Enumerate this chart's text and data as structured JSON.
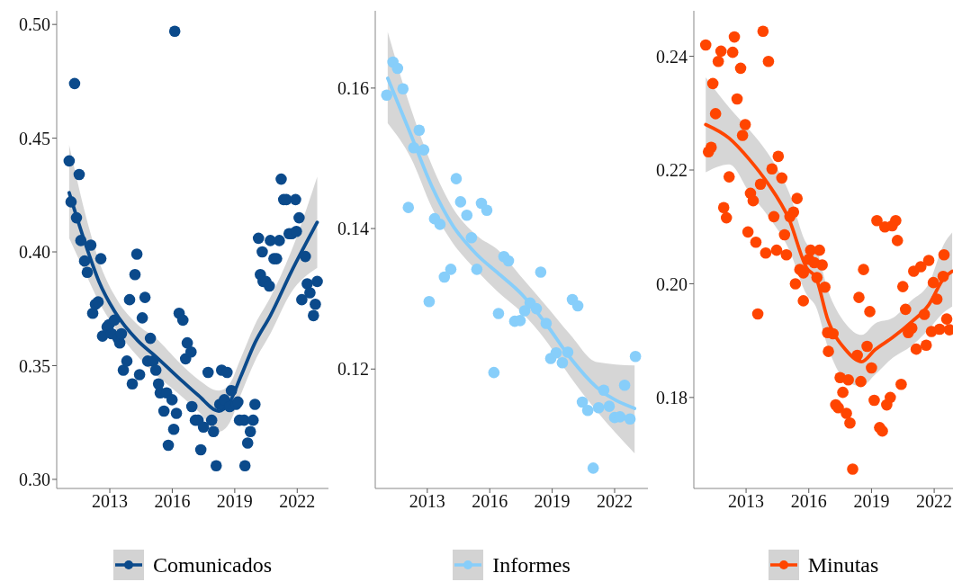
{
  "chart_data": [
    {
      "type": "scatter",
      "xlim": [
        2010.45,
        2023.5
      ],
      "xticks": [
        2013,
        2016,
        2019,
        2022
      ],
      "ylim": [
        0.296,
        0.506
      ],
      "yticks": [
        {
          "value": 0.3,
          "label": "0.30"
        },
        {
          "value": 0.35,
          "label": "0.35"
        },
        {
          "value": 0.4,
          "label": "0.40"
        },
        {
          "value": 0.45,
          "label": "0.45"
        },
        {
          "value": 0.5,
          "label": "0.50"
        }
      ],
      "legend": "bottom",
      "series": [
        {
          "name": "Comunicados",
          "marker": "circle",
          "color": "#0b4a8b",
          "x": [
            2011.05,
            2011.14,
            2011.31,
            2011.4,
            2011.53,
            2011.61,
            2011.79,
            2011.92,
            2012.09,
            2012.18,
            2012.31,
            2012.44,
            2012.57,
            2012.65,
            2012.87,
            2012.96,
            2013.09,
            2013.22,
            2013.39,
            2013.48,
            2013.56,
            2013.65,
            2013.82,
            2013.95,
            2014.08,
            2014.21,
            2014.3,
            2014.43,
            2014.56,
            2014.69,
            2014.82,
            2014.95,
            2015.08,
            2015.21,
            2015.34,
            2015.42,
            2015.6,
            2015.73,
            2015.81,
            2015.99,
            2016.07,
            2016.12,
            2016.2,
            2016.33,
            2016.51,
            2016.64,
            2016.72,
            2016.9,
            2016.94,
            2017.11,
            2017.24,
            2017.37,
            2017.5,
            2017.72,
            2017.89,
            2017.98,
            2018.11,
            2018.28,
            2018.37,
            2018.5,
            2018.63,
            2018.76,
            2018.84,
            2019.06,
            2019.15,
            2019.23,
            2019.45,
            2019.49,
            2019.62,
            2019.75,
            2019.88,
            2019.97,
            2020.14,
            2020.23,
            2020.32,
            2020.36,
            2020.49,
            2020.66,
            2020.71,
            2020.88,
            2021.01,
            2021.14,
            2021.23,
            2021.35,
            2021.48,
            2021.61,
            2021.74,
            2021.92,
            2021.96,
            2022.09,
            2022.22,
            2022.39,
            2022.48,
            2022.61,
            2022.78,
            2022.87,
            2022.96
          ],
          "values": [
            0.44,
            0.422,
            0.474,
            0.415,
            0.434,
            0.405,
            0.396,
            0.391,
            0.403,
            0.373,
            0.377,
            0.378,
            0.397,
            0.363,
            0.367,
            0.368,
            0.364,
            0.37,
            0.362,
            0.36,
            0.364,
            0.348,
            0.352,
            0.379,
            0.342,
            0.39,
            0.399,
            0.346,
            0.371,
            0.38,
            0.352,
            0.362,
            0.352,
            0.348,
            0.342,
            0.338,
            0.33,
            0.338,
            0.315,
            0.335,
            0.322,
            0.497,
            0.329,
            0.373,
            0.37,
            0.353,
            0.36,
            0.356,
            0.332,
            0.326,
            0.326,
            0.313,
            0.323,
            0.347,
            0.326,
            0.321,
            0.306,
            0.333,
            0.348,
            0.335,
            0.347,
            0.332,
            0.339,
            0.333,
            0.334,
            0.326,
            0.326,
            0.306,
            0.316,
            0.321,
            0.326,
            0.333,
            0.406,
            0.39,
            0.4,
            0.387,
            0.387,
            0.385,
            0.405,
            0.397,
            0.397,
            0.405,
            0.432,
            0.423,
            0.423,
            0.408,
            0.408,
            0.423,
            0.409,
            0.415,
            0.379,
            0.398,
            0.386,
            0.382,
            0.372,
            0.377,
            0.387
          ]
        },
        {
          "type": "line",
          "color": "#0b4a8b",
          "x": [
            2011.05,
            2011.96,
            2012.48,
            2013.22,
            2014.34,
            2015.21,
            2016.38,
            2017.24,
            2018.24,
            2018.76,
            2019.28,
            2019.97,
            2020.71,
            2021.7,
            2022.96
          ],
          "values": [
            0.426,
            0.4,
            0.387,
            0.374,
            0.361,
            0.354,
            0.344,
            0.337,
            0.33,
            0.334,
            0.345,
            0.36,
            0.372,
            0.391,
            0.413
          ],
          "lower": [
            0.406,
            0.388,
            0.378,
            0.367,
            0.354,
            0.346,
            0.337,
            0.33,
            0.321,
            0.325,
            0.337,
            0.352,
            0.364,
            0.382,
            0.393
          ],
          "upper": [
            0.447,
            0.412,
            0.396,
            0.381,
            0.368,
            0.362,
            0.351,
            0.344,
            0.339,
            0.342,
            0.353,
            0.368,
            0.38,
            0.4,
            0.433
          ]
        }
      ]
    },
    {
      "type": "scatter",
      "xlim": [
        2010.5,
        2023.6
      ],
      "xticks": [
        2013,
        2016,
        2019,
        2022
      ],
      "ylim": [
        0.103,
        0.171
      ],
      "yticks": [
        0.12,
        0.14,
        0.16
      ],
      "legend": "bottom",
      "series": [
        {
          "name": "Informes",
          "marker": "circle",
          "color": "#87cefa",
          "x": [
            2011.05,
            2011.35,
            2011.57,
            2011.83,
            2012.09,
            2012.35,
            2012.61,
            2012.83,
            2013.09,
            2013.35,
            2013.61,
            2013.82,
            2014.13,
            2014.39,
            2014.6,
            2014.9,
            2015.12,
            2015.38,
            2015.6,
            2015.86,
            2016.2,
            2016.42,
            2016.68,
            2016.9,
            2017.2,
            2017.46,
            2017.68,
            2017.94,
            2018.24,
            2018.45,
            2018.71,
            2018.93,
            2019.19,
            2019.49,
            2019.75,
            2019.97,
            2020.23,
            2020.45,
            2020.71,
            2020.97,
            2021.23,
            2021.48,
            2021.74,
            2022.0,
            2022.26,
            2022.48,
            2022.74,
            2023.0
          ],
          "values": [
            0.159,
            0.1637,
            0.1628,
            0.1599,
            0.143,
            0.1515,
            0.154,
            0.1512,
            0.1296,
            0.1414,
            0.1406,
            0.1331,
            0.1342,
            0.1471,
            0.1438,
            0.1419,
            0.1387,
            0.1342,
            0.1436,
            0.1426,
            0.1195,
            0.1279,
            0.136,
            0.1354,
            0.1268,
            0.1269,
            0.1283,
            0.1294,
            0.1286,
            0.1338,
            0.1265,
            0.1215,
            0.1223,
            0.1209,
            0.1224,
            0.1299,
            0.129,
            0.1153,
            0.1141,
            0.1059,
            0.1145,
            0.117,
            0.1147,
            0.1131,
            0.1132,
            0.1177,
            0.1129,
            0.1218
          ]
        },
        {
          "type": "line",
          "color": "#87cefa",
          "x": [
            2011.1,
            2012.22,
            2013.22,
            2014.21,
            2015.38,
            2016.38,
            2017.55,
            2018.71,
            2019.84,
            2021.14,
            2022.96
          ],
          "values": [
            0.1614,
            0.1533,
            0.146,
            0.1405,
            0.1363,
            0.1337,
            0.1306,
            0.1264,
            0.1217,
            0.1174,
            0.1144
          ],
          "lower": [
            0.155,
            0.15,
            0.143,
            0.138,
            0.134,
            0.131,
            0.128,
            0.124,
            0.119,
            0.114,
            0.108
          ],
          "upper": [
            0.168,
            0.157,
            0.149,
            0.143,
            0.139,
            0.137,
            0.133,
            0.129,
            0.125,
            0.121,
            0.1205
          ]
        }
      ]
    },
    {
      "type": "scatter",
      "xlim": [
        2010.5,
        2022.9
      ],
      "xticks": [
        2013,
        2016,
        2019,
        2022
      ],
      "ylim": [
        0.164,
        0.248
      ],
      "yticks": [
        {
          "value": 0.18,
          "label": "0.18"
        },
        {
          "value": 0.2,
          "label": "0.20"
        },
        {
          "value": 0.22,
          "label": "0.22"
        },
        {
          "value": 0.24,
          "label": "0.24"
        }
      ],
      "legend": "bottom",
      "series": [
        {
          "name": "Minutas",
          "marker": "circle",
          "color": "#ff4500",
          "x": [
            2011.07,
            2011.2,
            2011.33,
            2011.41,
            2011.54,
            2011.67,
            2011.8,
            2011.93,
            2012.06,
            2012.19,
            2012.36,
            2012.44,
            2012.57,
            2012.74,
            2012.83,
            2012.96,
            2013.09,
            2013.21,
            2013.34,
            2013.47,
            2013.56,
            2013.69,
            2013.81,
            2013.94,
            2014.07,
            2014.24,
            2014.33,
            2014.46,
            2014.54,
            2014.71,
            2014.84,
            2014.93,
            2015.1,
            2015.27,
            2015.36,
            2015.44,
            2015.57,
            2015.74,
            2015.74,
            2016.0,
            2016.09,
            2016.26,
            2016.39,
            2016.51,
            2016.64,
            2016.77,
            2016.9,
            2016.94,
            2017.16,
            2017.29,
            2017.41,
            2017.5,
            2017.63,
            2017.8,
            2017.89,
            2017.97,
            2018.1,
            2018.32,
            2018.4,
            2018.49,
            2018.62,
            2018.79,
            2018.92,
            2019.0,
            2019.13,
            2019.26,
            2019.39,
            2019.52,
            2019.64,
            2019.73,
            2019.9,
            2019.99,
            2020.16,
            2020.24,
            2020.42,
            2020.5,
            2020.63,
            2020.76,
            2020.93,
            2021.02,
            2021.14,
            2021.36,
            2021.53,
            2021.62,
            2021.74,
            2021.87,
            2021.96,
            2022.13,
            2022.26,
            2022.43,
            2022.47,
            2022.6,
            2022.73
          ],
          "values": [
            0.242,
            0.2232,
            0.224,
            0.2352,
            0.2299,
            0.2391,
            0.2409,
            0.2134,
            0.2116,
            0.2188,
            0.2407,
            0.2434,
            0.2325,
            0.2379,
            0.2261,
            0.228,
            0.2091,
            0.2159,
            0.2146,
            0.2073,
            0.1947,
            0.2175,
            0.2444,
            0.2054,
            0.2391,
            0.2202,
            0.2118,
            0.2059,
            0.2224,
            0.2186,
            0.2086,
            0.2051,
            0.2118,
            0.2126,
            0.2,
            0.215,
            0.2025,
            0.2019,
            0.197,
            0.2043,
            0.2059,
            0.2037,
            0.2011,
            0.2059,
            0.2033,
            0.1994,
            0.1914,
            0.1881,
            0.1912,
            0.1787,
            0.1782,
            0.1835,
            0.1809,
            0.1772,
            0.1831,
            0.1755,
            0.1674,
            0.1874,
            0.1976,
            0.1828,
            0.2025,
            0.189,
            0.1951,
            0.1852,
            0.1795,
            0.2111,
            0.1747,
            0.1741,
            0.21,
            0.1787,
            0.18,
            0.2102,
            0.2111,
            0.2076,
            0.1823,
            0.1995,
            0.1955,
            0.1914,
            0.1922,
            0.2022,
            0.1885,
            0.203,
            0.1946,
            0.1892,
            0.2041,
            0.1916,
            0.2002,
            0.1973,
            0.192,
            0.2013,
            0.2051,
            0.1938,
            0.1919
          ]
        },
        {
          "type": "line",
          "color": "#ff4500",
          "x": [
            2011.07,
            2012.19,
            2013.17,
            2014.03,
            2015.06,
            2015.91,
            2016.34,
            2016.9,
            2017.76,
            2018.53,
            2019.17,
            2020.03,
            2020.89,
            2021.74,
            2022.47,
            2022.86
          ],
          "values": [
            0.228,
            0.2256,
            0.2218,
            0.2177,
            0.2113,
            0.2027,
            0.2011,
            0.1938,
            0.1884,
            0.1863,
            0.1884,
            0.1906,
            0.1932,
            0.1963,
            0.201,
            0.2022
          ],
          "lower": [
            0.2196,
            0.221,
            0.216,
            0.212,
            0.206,
            0.198,
            0.196,
            0.189,
            0.183,
            0.182,
            0.184,
            0.187,
            0.189,
            0.192,
            0.195,
            0.196
          ],
          "upper": [
            0.2363,
            0.231,
            0.227,
            0.223,
            0.216,
            0.207,
            0.206,
            0.199,
            0.193,
            0.191,
            0.193,
            0.194,
            0.197,
            0.2,
            0.207,
            0.209
          ]
        }
      ]
    }
  ]
}
